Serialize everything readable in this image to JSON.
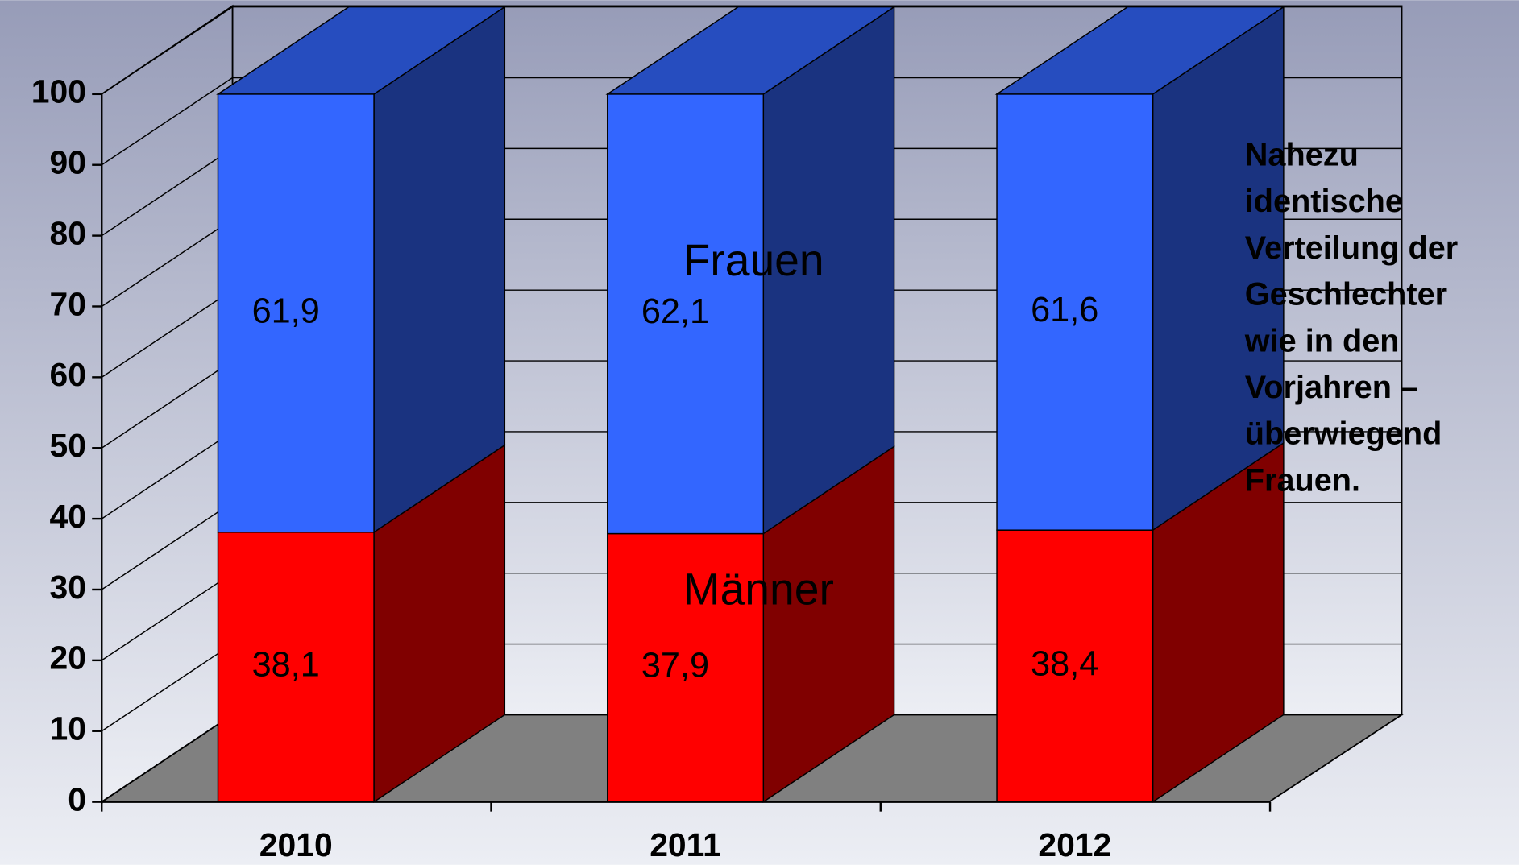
{
  "chart_data": {
    "type": "bar3d_stacked",
    "categories": [
      "2010",
      "2011",
      "2012"
    ],
    "series": [
      {
        "name": "Männer",
        "color": "#ff0000",
        "values": [
          38.1,
          37.9,
          38.4
        ],
        "value_labels": [
          "38,1",
          "37,9",
          "38,4"
        ]
      },
      {
        "name": "Frauen",
        "color": "#3366ff",
        "values": [
          61.9,
          62.1,
          61.6
        ],
        "value_labels": [
          "61,9",
          "62,1",
          "61,6"
        ]
      }
    ],
    "ylim": [
      0,
      100
    ],
    "yticks": [
      0,
      10,
      20,
      30,
      40,
      50,
      60,
      70,
      80,
      90,
      100
    ],
    "grid": true,
    "annotation": [
      "Nahezu",
      "identische",
      "Verteilung der",
      "Geschlechter",
      "wie in den",
      "Vorjahren –",
      "überwiegend",
      "Frauen."
    ]
  }
}
